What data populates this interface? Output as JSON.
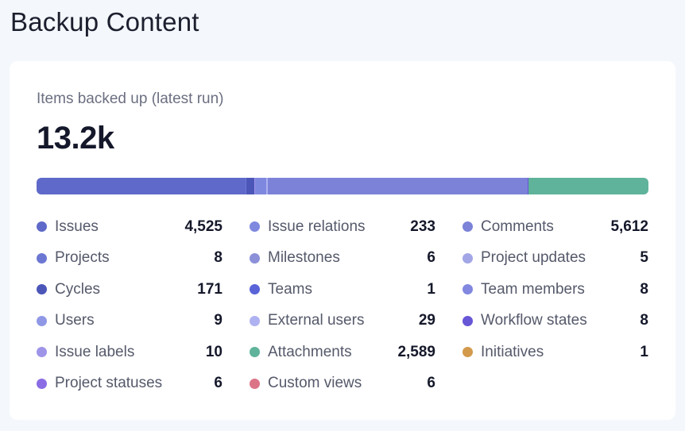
{
  "page": {
    "title": "Backup Content"
  },
  "card": {
    "label": "Items backed up (latest run)",
    "total": "13.2k"
  },
  "items": [
    {
      "name": "Issues",
      "value": "4,525",
      "count": 4525,
      "color": "#5f69c9"
    },
    {
      "name": "Projects",
      "value": "8",
      "count": 8,
      "color": "#6c77d3"
    },
    {
      "name": "Cycles",
      "value": "171",
      "count": 171,
      "color": "#4c56b8"
    },
    {
      "name": "Users",
      "value": "9",
      "count": 9,
      "color": "#9098e6"
    },
    {
      "name": "Issue labels",
      "value": "10",
      "count": 10,
      "color": "#9e94e8"
    },
    {
      "name": "Project statuses",
      "value": "6",
      "count": 6,
      "color": "#8a6ce4"
    },
    {
      "name": "Issue relations",
      "value": "233",
      "count": 233,
      "color": "#7f88df"
    },
    {
      "name": "Milestones",
      "value": "6",
      "count": 6,
      "color": "#8b90d8"
    },
    {
      "name": "Teams",
      "value": "1",
      "count": 1,
      "color": "#5a64d8"
    },
    {
      "name": "External users",
      "value": "29",
      "count": 29,
      "color": "#aeb2f0"
    },
    {
      "name": "Attachments",
      "value": "2,589",
      "count": 2589,
      "color": "#5fb39a"
    },
    {
      "name": "Custom views",
      "value": "6",
      "count": 6,
      "color": "#dc7488"
    },
    {
      "name": "Comments",
      "value": "5,612",
      "count": 5612,
      "color": "#7b82d8"
    },
    {
      "name": "Project updates",
      "value": "5",
      "count": 5,
      "color": "#a3a6e6"
    },
    {
      "name": "Team members",
      "value": "8",
      "count": 8,
      "color": "#8288e0"
    },
    {
      "name": "Workflow states",
      "value": "8",
      "count": 8,
      "color": "#6756d6"
    },
    {
      "name": "Initiatives",
      "value": "1",
      "count": 1,
      "color": "#d39a4c"
    }
  ]
}
